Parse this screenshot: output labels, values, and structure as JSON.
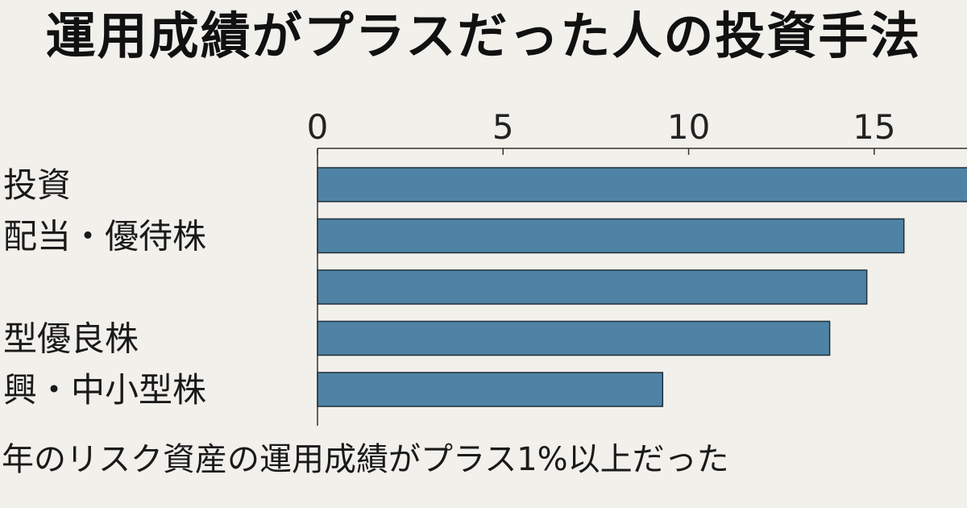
{
  "chart_data": {
    "type": "bar",
    "orientation": "horizontal",
    "title": "運用成績がプラスだった人の投資手法",
    "categories": [
      "投資",
      "配当・優待株",
      "",
      "型優良株",
      "興・中小型株"
    ],
    "values": [
      17.8,
      15.8,
      14.8,
      13.8,
      9.3
    ],
    "xticks": [
      0,
      5,
      10,
      15
    ],
    "xlim": [
      0,
      17.5
    ],
    "axis_position": "top",
    "grid": false,
    "legend": "none",
    "bar_color": "#4f83a5",
    "bar_edge_color": "#1f2f3a",
    "footnote": "年のリスク資産の運用成績がプラス1%以上だった"
  }
}
